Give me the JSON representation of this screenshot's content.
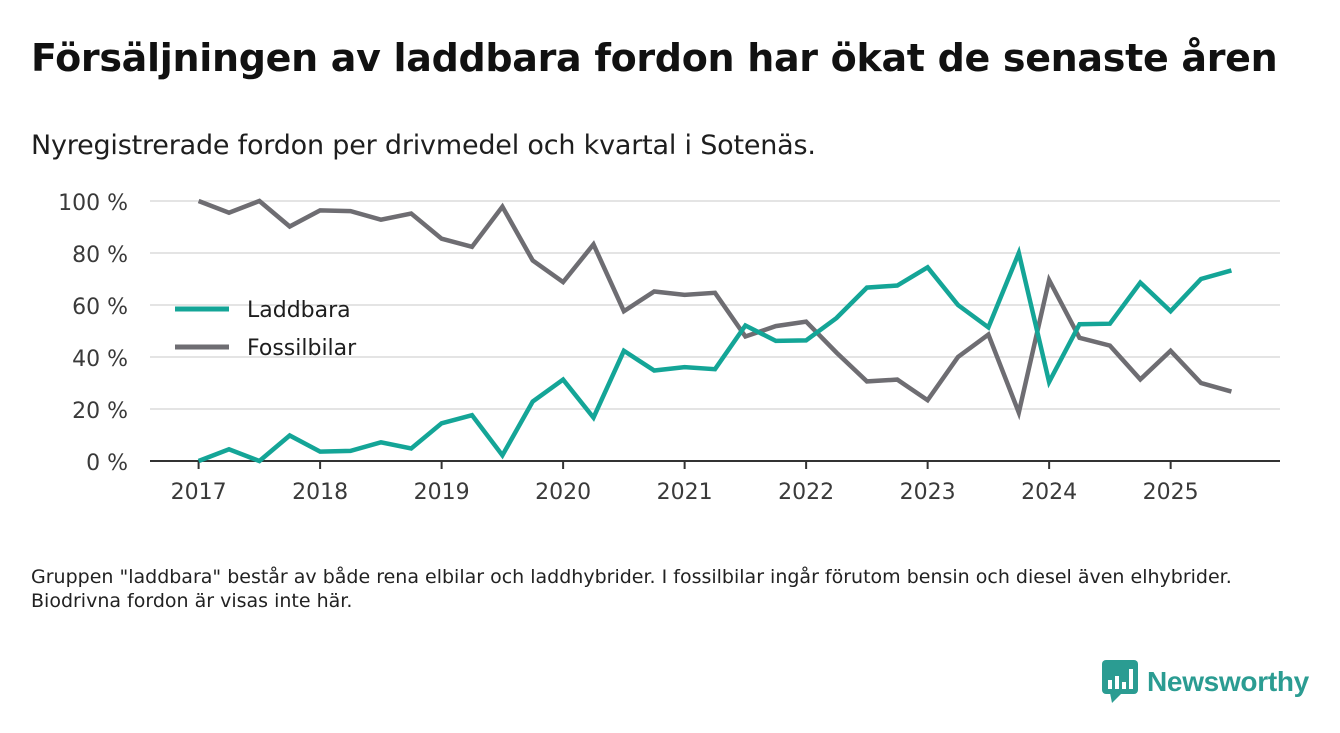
{
  "title": "Försäljningen av laddbara fordon har ökat de senaste åren",
  "subtitle": "Nyregistrerade fordon per drivmedel och kvartal i Sotenäs.",
  "footnote": "Gruppen \"laddbara\" består av både rena elbilar och laddhybrider. I fossilbilar ingår förutom bensin och diesel även elhybrider. Biodrivna fordon är visas inte här.",
  "brand": {
    "name": "Newsworthy"
  },
  "colors": {
    "laddbara": "#14a597",
    "fossil": "#6e6d72",
    "grid": "#dcdcdc",
    "axis": "#333333"
  },
  "chart_data": {
    "type": "line",
    "title": "Försäljningen av laddbara fordon har ökat de senaste åren",
    "subtitle": "Nyregistrerade fordon per drivmedel och kvartal i Sotenäs.",
    "xlabel": "",
    "ylabel": "",
    "ylim": [
      0,
      100
    ],
    "xlim": [
      2016.6,
      2025.9
    ],
    "x_ticks": [
      2017,
      2018,
      2019,
      2020,
      2021,
      2022,
      2023,
      2024,
      2025
    ],
    "x_tick_labels": [
      "2017",
      "2018",
      "2019",
      "2020",
      "2021",
      "2022",
      "2023",
      "2024",
      "2025"
    ],
    "y_ticks": [
      0,
      20,
      40,
      60,
      80,
      100
    ],
    "y_tick_labels": [
      "0 %",
      "20 %",
      "40 %",
      "60 %",
      "80 %",
      "100 %"
    ],
    "grid": true,
    "legend_position": "left-center",
    "x": [
      2017.0,
      2017.25,
      2017.5,
      2017.75,
      2018.0,
      2018.25,
      2018.5,
      2018.75,
      2019.0,
      2019.25,
      2019.5,
      2019.75,
      2020.0,
      2020.25,
      2020.5,
      2020.75,
      2021.0,
      2021.25,
      2021.5,
      2021.75,
      2022.0,
      2022.25,
      2022.5,
      2022.75,
      2023.0,
      2023.25,
      2023.5,
      2023.75,
      2024.0,
      2024.25,
      2024.5,
      2024.75,
      2025.0,
      2025.25,
      2025.5
    ],
    "series": [
      {
        "name": "Laddbara",
        "color": "#14a597",
        "values": [
          0,
          4.5,
          0,
          9.8,
          3.6,
          3.9,
          7.2,
          4.8,
          14.5,
          17.6,
          2.2,
          22.9,
          31.3,
          16.7,
          42.4,
          34.8,
          36.1,
          35.3,
          52.1,
          46.2,
          46.4,
          55.0,
          66.7,
          67.5,
          74.5,
          60.0,
          51.4,
          80.0,
          30.4,
          52.6,
          52.8,
          68.6,
          57.6,
          70.0,
          73.3
        ]
      },
      {
        "name": "Fossilbilar",
        "color": "#6e6d72",
        "values": [
          100,
          95.5,
          100,
          90.2,
          96.4,
          96.1,
          92.8,
          95.2,
          85.5,
          82.4,
          97.8,
          77.1,
          68.8,
          83.3,
          57.6,
          65.2,
          63.9,
          64.7,
          47.9,
          51.9,
          53.6,
          41.7,
          30.6,
          31.3,
          23.4,
          40.0,
          48.6,
          18.6,
          69.6,
          47.4,
          44.4,
          31.4,
          42.4,
          30.0,
          26.7
        ]
      }
    ]
  }
}
